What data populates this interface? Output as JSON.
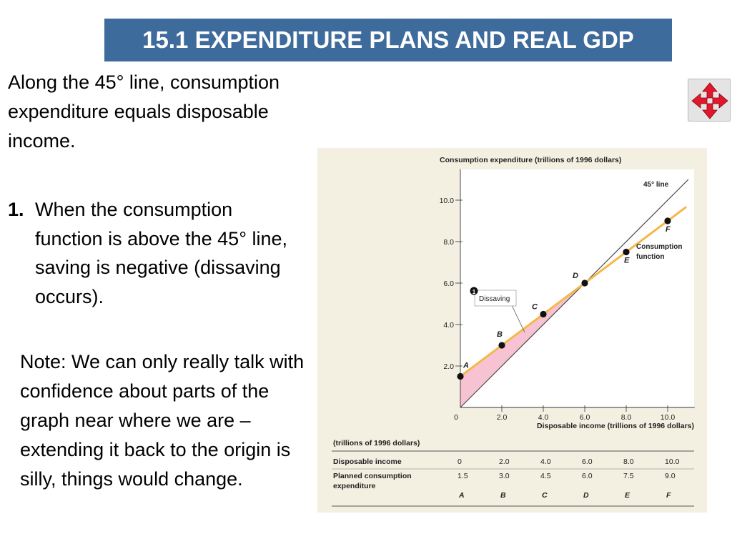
{
  "slide": {
    "title": "15.1 EXPENDITURE PLANS AND REAL GDP",
    "intro": "Along the 45° line, consumption expenditure equals disposable income.",
    "point1_num": "1.",
    "point1_text": "When the consumption function is above the 45° line, saving is negative (dissaving occurs).",
    "note": "Note: We can only really talk with confidence about parts of the graph near where we are – extending it back to the origin is silly, things would change."
  },
  "nav": {
    "icon": "four-way-arrows-icon",
    "color": "#e0182d"
  },
  "chart_data": {
    "type": "line",
    "ylabel": "Consumption expenditure (trillions of 1996 dollars)",
    "xlabel": "Disposable income (trillions of 1996 dollars)",
    "xlim": [
      0,
      11
    ],
    "ylim": [
      0,
      11.5
    ],
    "x_ticks": [
      "0",
      "2.0",
      "4.0",
      "6.0",
      "8.0",
      "10.0"
    ],
    "y_ticks": [
      "2.0",
      "4.0",
      "6.0",
      "8.0",
      "10.0"
    ],
    "y_tick_values": [
      2,
      4,
      6,
      8,
      10
    ],
    "x_tick_values": [
      0,
      2,
      4,
      6,
      8,
      10
    ],
    "series": [
      {
        "kind": "45-line",
        "points": [
          [
            0,
            0
          ],
          [
            11,
            11
          ]
        ],
        "color": "#4a4a4a"
      },
      {
        "kind": "consumption",
        "points": [
          [
            0,
            1.5
          ],
          [
            10.9,
            9.675
          ]
        ],
        "color": "#f5b74a"
      }
    ],
    "points": [
      {
        "label": "A",
        "x": 0,
        "y": 1.5
      },
      {
        "label": "B",
        "x": 2,
        "y": 3.0
      },
      {
        "label": "C",
        "x": 4,
        "y": 4.5
      },
      {
        "label": "D",
        "x": 6,
        "y": 6.0
      },
      {
        "label": "E",
        "x": 8,
        "y": 7.5
      },
      {
        "label": "F",
        "x": 10,
        "y": 9.0
      }
    ],
    "dissaving_fill": "#f7c3d2",
    "annotations": {
      "line45": "45° line",
      "consumption_1": "Consumption",
      "consumption_2": "function",
      "marker": "1",
      "dissaving": "Dissaving"
    },
    "table": {
      "caption": "(trillions of 1996 dollars)",
      "rows": [
        {
          "label": "Disposable income",
          "values": [
            "0",
            "2.0",
            "4.0",
            "6.0",
            "8.0",
            "10.0"
          ]
        },
        {
          "label": "Planned consumption",
          "label2": "expenditure",
          "values": [
            "1.5",
            "3.0",
            "4.5",
            "6.0",
            "7.5",
            "9.0"
          ]
        }
      ],
      "letters": [
        "A",
        "B",
        "C",
        "D",
        "E",
        "F"
      ]
    }
  }
}
